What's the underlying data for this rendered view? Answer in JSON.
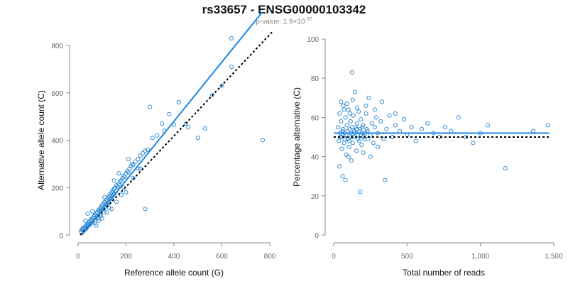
{
  "header": {
    "title": "rs33657 - ENSG00000103342",
    "pvalue_prefix": "p-value: 1.9×10",
    "pvalue_exponent": "-37"
  },
  "colors": {
    "points": "#3a8fd4",
    "fit_line": "#1e88e5",
    "reference_line": "#000000",
    "axis": "#888888"
  },
  "chart_data": [
    {
      "type": "scatter",
      "xlabel": "Reference allele count (G)",
      "ylabel": "Alternative allele count (C)",
      "xlim": [
        0,
        800
      ],
      "ylim": [
        0,
        800
      ],
      "xticks": [
        0,
        200,
        400,
        600,
        800
      ],
      "yticks": [
        0,
        200,
        400,
        600,
        800
      ],
      "xtick_labels": [
        "0",
        "200",
        "400",
        "600",
        "800"
      ],
      "ytick_labels": [
        "0",
        "200",
        "400",
        "600",
        "800"
      ],
      "grid": false,
      "fit_line": {
        "style": "solid",
        "slope": 1.25,
        "intercept": -20,
        "x_range": [
          0,
          770
        ]
      },
      "reference_line": {
        "style": "dashed",
        "slope": 1.07,
        "intercept": -10,
        "x_range": [
          0,
          810
        ]
      },
      "points": [
        [
          12,
          15
        ],
        [
          15,
          22
        ],
        [
          18,
          20
        ],
        [
          20,
          28
        ],
        [
          22,
          18
        ],
        [
          25,
          32
        ],
        [
          28,
          30
        ],
        [
          30,
          36
        ],
        [
          32,
          25
        ],
        [
          35,
          40
        ],
        [
          38,
          45
        ],
        [
          40,
          35
        ],
        [
          42,
          50
        ],
        [
          45,
          55
        ],
        [
          48,
          42
        ],
        [
          50,
          60
        ],
        [
          52,
          48
        ],
        [
          55,
          66
        ],
        [
          58,
          62
        ],
        [
          60,
          70
        ],
        [
          62,
          55
        ],
        [
          65,
          78
        ],
        [
          68,
          72
        ],
        [
          70,
          85
        ],
        [
          72,
          65
        ],
        [
          75,
          92
        ],
        [
          78,
          80
        ],
        [
          80,
          96
        ],
        [
          82,
          70
        ],
        [
          85,
          105
        ],
        [
          88,
          98
        ],
        [
          90,
          110
        ],
        [
          92,
          88
        ],
        [
          95,
          118
        ],
        [
          98,
          105
        ],
        [
          100,
          125
        ],
        [
          102,
          112
        ],
        [
          105,
          130
        ],
        [
          108,
          95
        ],
        [
          110,
          138
        ],
        [
          112,
          120
        ],
        [
          115,
          145
        ],
        [
          118,
          132
        ],
        [
          120,
          150
        ],
        [
          122,
          128
        ],
        [
          125,
          158
        ],
        [
          128,
          140
        ],
        [
          130,
          165
        ],
        [
          132,
          150
        ],
        [
          135,
          172
        ],
        [
          138,
          155
        ],
        [
          140,
          180
        ],
        [
          142,
          162
        ],
        [
          145,
          188
        ],
        [
          148,
          170
        ],
        [
          150,
          195
        ],
        [
          152,
          175
        ],
        [
          155,
          200
        ],
        [
          158,
          185
        ],
        [
          160,
          210
        ],
        [
          165,
          205
        ],
        [
          170,
          215
        ],
        [
          175,
          225
        ],
        [
          180,
          230
        ],
        [
          185,
          240
        ],
        [
          190,
          250
        ],
        [
          195,
          245
        ],
        [
          200,
          260
        ],
        [
          205,
          270
        ],
        [
          210,
          265
        ],
        [
          215,
          280
        ],
        [
          220,
          290
        ],
        [
          225,
          300
        ],
        [
          230,
          295
        ],
        [
          240,
          310
        ],
        [
          250,
          320
        ],
        [
          260,
          335
        ],
        [
          270,
          345
        ],
        [
          280,
          355
        ],
        [
          290,
          360
        ],
        [
          300,
          540
        ],
        [
          310,
          410
        ],
        [
          330,
          420
        ],
        [
          350,
          470
        ],
        [
          360,
          440
        ],
        [
          380,
          510
        ],
        [
          400,
          465
        ],
        [
          420,
          560
        ],
        [
          450,
          470
        ],
        [
          460,
          455
        ],
        [
          500,
          410
        ],
        [
          530,
          450
        ],
        [
          560,
          590
        ],
        [
          600,
          630
        ],
        [
          640,
          710
        ],
        [
          640,
          830
        ],
        [
          770,
          400
        ],
        [
          85,
          60
        ],
        [
          120,
          95
        ],
        [
          150,
          230
        ],
        [
          180,
          170
        ],
        [
          200,
          180
        ],
        [
          230,
          240
        ],
        [
          260,
          280
        ],
        [
          280,
          110
        ],
        [
          75,
          40
        ],
        [
          60,
          100
        ],
        [
          40,
          90
        ],
        [
          30,
          60
        ],
        [
          100,
          70
        ],
        [
          140,
          110
        ],
        [
          170,
          260
        ],
        [
          190,
          200
        ],
        [
          210,
          320
        ],
        [
          250,
          280
        ],
        [
          110,
          160
        ],
        [
          130,
          115
        ],
        [
          160,
          140
        ],
        [
          95,
          80
        ],
        [
          70,
          50
        ]
      ]
    },
    {
      "type": "scatter",
      "xlabel": "Total number of reads",
      "ylabel": "Percentage alternative (C)",
      "xlim": [
        0,
        1500
      ],
      "ylim": [
        0,
        100
      ],
      "xticks": [
        0,
        500,
        1000,
        1500
      ],
      "yticks": [
        0,
        20,
        40,
        60,
        80,
        100
      ],
      "xtick_labels": [
        "0",
        "500",
        "1,000",
        "1,500"
      ],
      "ytick_labels": [
        "0",
        "20",
        "40",
        "60",
        "80",
        "100"
      ],
      "grid": false,
      "fit_line": {
        "style": "solid",
        "y": 52,
        "x_range": [
          0,
          1470
        ]
      },
      "reference_line": {
        "style": "dashed",
        "y": 50,
        "x_range": [
          0,
          1470
        ]
      },
      "points": [
        [
          30,
          55
        ],
        [
          35,
          48
        ],
        [
          40,
          62
        ],
        [
          45,
          50
        ],
        [
          50,
          58
        ],
        [
          55,
          44
        ],
        [
          60,
          53
        ],
        [
          65,
          66
        ],
        [
          70,
          47
        ],
        [
          75,
          52
        ],
        [
          80,
          60
        ],
        [
          85,
          41
        ],
        [
          90,
          56
        ],
        [
          95,
          49
        ],
        [
          100,
          64
        ],
        [
          105,
          45
        ],
        [
          110,
          54
        ],
        [
          115,
          58
        ],
        [
          120,
          50
        ],
        [
          125,
          83
        ],
        [
          130,
          47
        ],
        [
          135,
          61
        ],
        [
          140,
          53
        ],
        [
          145,
          73
        ],
        [
          150,
          55
        ],
        [
          155,
          43
        ],
        [
          160,
          57
        ],
        [
          165,
          51
        ],
        [
          170,
          63
        ],
        [
          175,
          48
        ],
        [
          180,
          54
        ],
        [
          185,
          59
        ],
        [
          190,
          46
        ],
        [
          195,
          52
        ],
        [
          200,
          56
        ],
        [
          210,
          49
        ],
        [
          220,
          62
        ],
        [
          230,
          53
        ],
        [
          240,
          70
        ],
        [
          250,
          51
        ],
        [
          260,
          57
        ],
        [
          270,
          47
        ],
        [
          280,
          55
        ],
        [
          290,
          60
        ],
        [
          300,
          52
        ],
        [
          320,
          58
        ],
        [
          340,
          49
        ],
        [
          360,
          54
        ],
        [
          380,
          61
        ],
        [
          400,
          50
        ],
        [
          420,
          56
        ],
        [
          450,
          53
        ],
        [
          480,
          59
        ],
        [
          500,
          51
        ],
        [
          530,
          55
        ],
        [
          560,
          48
        ],
        [
          600,
          54
        ],
        [
          640,
          57
        ],
        [
          680,
          52
        ],
        [
          720,
          50
        ],
        [
          760,
          55
        ],
        [
          800,
          53
        ],
        [
          850,
          60
        ],
        [
          900,
          50
        ],
        [
          950,
          47
        ],
        [
          1000,
          52
        ],
        [
          1050,
          56
        ],
        [
          1170,
          34
        ],
        [
          1360,
          53
        ],
        [
          1460,
          56
        ],
        [
          40,
          35
        ],
        [
          60,
          30
        ],
        [
          80,
          28
        ],
        [
          100,
          40
        ],
        [
          120,
          38
        ],
        [
          180,
          22
        ],
        [
          200,
          42
        ],
        [
          250,
          40
        ],
        [
          300,
          45
        ],
        [
          350,
          28
        ],
        [
          50,
          68
        ],
        [
          70,
          64
        ],
        [
          90,
          67
        ],
        [
          110,
          62
        ],
        [
          130,
          69
        ],
        [
          160,
          65
        ],
        [
          220,
          66
        ],
        [
          280,
          64
        ],
        [
          330,
          68
        ],
        [
          420,
          62
        ],
        [
          45,
          52
        ],
        [
          55,
          50
        ],
        [
          65,
          54
        ],
        [
          75,
          49
        ],
        [
          85,
          51
        ],
        [
          95,
          53
        ],
        [
          105,
          48
        ],
        [
          115,
          52
        ],
        [
          125,
          55
        ],
        [
          135,
          50
        ],
        [
          145,
          52
        ],
        [
          155,
          54
        ],
        [
          165,
          49
        ],
        [
          175,
          53
        ],
        [
          185,
          51
        ],
        [
          195,
          55
        ],
        [
          205,
          50
        ],
        [
          215,
          52
        ],
        [
          225,
          54
        ],
        [
          235,
          49
        ]
      ]
    }
  ]
}
